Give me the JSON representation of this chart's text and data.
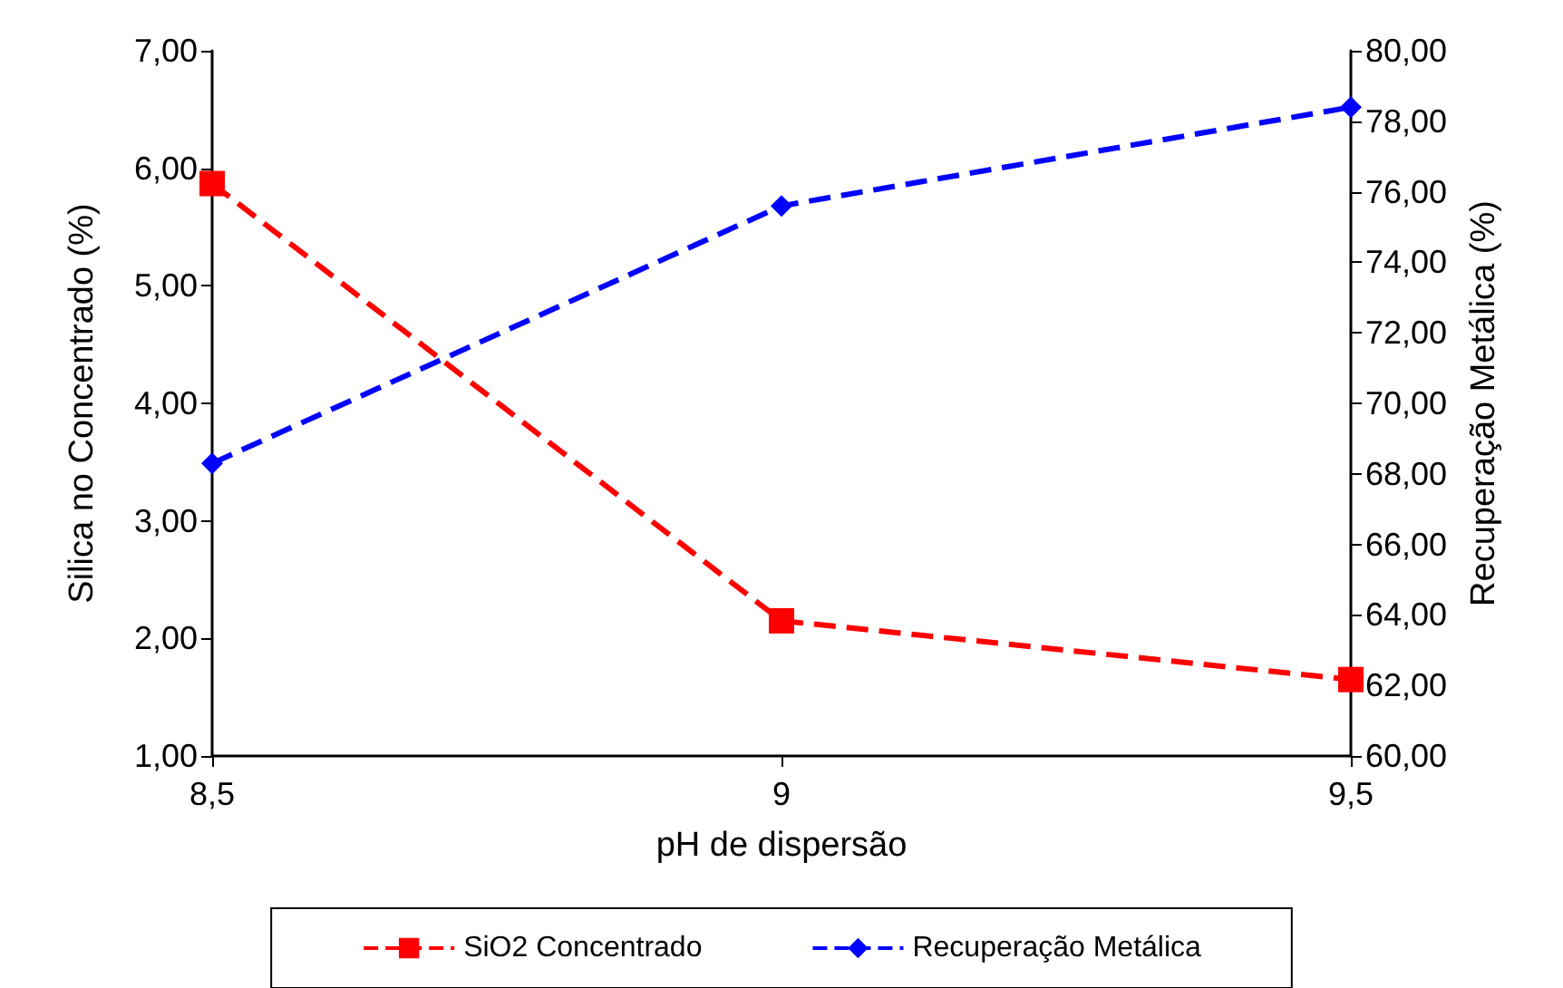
{
  "chart_data": {
    "type": "line",
    "xlabel": "pH de dispersão",
    "ylabel": "Silica no Concentrado (%)",
    "y2label": "Recuperação Metálica (%)",
    "x": [
      8.5,
      9,
      9.5
    ],
    "series": [
      {
        "name": "SiO2 Concentrado",
        "color": "#ff0000",
        "values": [
          5.87,
          2.15,
          1.65
        ],
        "marker": "square",
        "line_style": "dashed"
      },
      {
        "name": "Recuperação Metálica",
        "color": "#0000ff",
        "values": [
          68.3,
          75.6,
          78.4
        ],
        "marker": "diamond",
        "line_style": "dashed",
        "axis": "y2"
      }
    ],
    "xlim": [
      8.5,
      9.5
    ],
    "xticks": [
      {
        "value": 8.5,
        "label": "8,5"
      },
      {
        "value": 9,
        "label": "9"
      },
      {
        "value": 9.5,
        "label": "9,5"
      }
    ],
    "ylim": [
      1,
      7
    ],
    "yticks": [
      {
        "value": 1,
        "label": "1,00"
      },
      {
        "value": 2,
        "label": "2,00"
      },
      {
        "value": 3,
        "label": "3,00"
      },
      {
        "value": 4,
        "label": "4,00"
      },
      {
        "value": 5,
        "label": "5,00"
      },
      {
        "value": 6,
        "label": "6,00"
      },
      {
        "value": 7,
        "label": "7,00"
      }
    ],
    "y2lim": [
      60,
      80
    ],
    "y2ticks": [
      {
        "value": 60,
        "label": "60,00"
      },
      {
        "value": 62,
        "label": "62,00"
      },
      {
        "value": 64,
        "label": "64,00"
      },
      {
        "value": 66,
        "label": "66,00"
      },
      {
        "value": 68,
        "label": "68,00"
      },
      {
        "value": 70,
        "label": "70,00"
      },
      {
        "value": 72,
        "label": "72,00"
      },
      {
        "value": 74,
        "label": "74,00"
      },
      {
        "value": 76,
        "label": "76,00"
      },
      {
        "value": 78,
        "label": "78,00"
      },
      {
        "value": 80,
        "label": "80,00"
      }
    ],
    "grid": false,
    "legend": "bottom"
  }
}
